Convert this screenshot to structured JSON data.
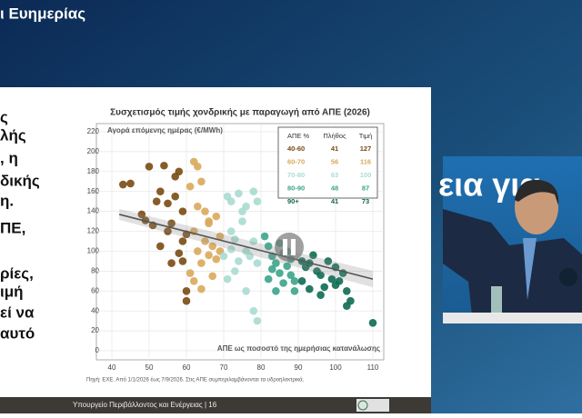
{
  "header": {
    "title": "ι Ευημερίας"
  },
  "slide_text": [
    "ς",
    "λής",
    ", η",
    "δικής",
    "η.",
    "ΠΕ,",
    "ρίες,",
    "ιμή",
    "εί να",
    "αυτό"
  ],
  "chart_data": {
    "type": "scatter",
    "title": "Συσχετισμός τιμής χονδρικής με παραγωγή από ΑΠΕ (2026)",
    "ylabel": "Αγορά επόμενης ημέρας (€/MWh)",
    "xlabel": "ΑΠΕ ως ποσοστό της ημερήσιας κατανάλωσης",
    "xlim": [
      40,
      110
    ],
    "xticks": [
      40,
      50,
      60,
      70,
      80,
      90,
      100,
      110
    ],
    "ylim": [
      0,
      220
    ],
    "yticks": [
      0,
      20,
      40,
      60,
      80,
      100,
      120,
      140,
      160,
      180,
      200,
      220
    ],
    "grid": true,
    "legend_headers": [
      "ΑΠΕ %",
      "Πλήθος",
      "Τιμή"
    ],
    "series": [
      {
        "name": "40-60",
        "color": "#7a4a12",
        "count": 41,
        "price": 127,
        "x": [
          43,
          45,
          50,
          48,
          49,
          52,
          53,
          54,
          55,
          55,
          56,
          57,
          58,
          59,
          59,
          56,
          60,
          60,
          58,
          51,
          53,
          57,
          59,
          60
        ],
        "values": [
          167,
          168,
          185,
          137,
          131,
          150,
          160,
          186,
          148,
          120,
          128,
          175,
          180,
          110,
          90,
          88,
          60,
          50,
          98,
          126,
          105,
          155,
          140,
          117
        ]
      },
      {
        "name": "60-70",
        "color": "#d9a85a",
        "count": 56,
        "price": 116,
        "x": [
          62,
          63,
          61,
          64,
          65,
          66,
          62,
          63,
          64,
          65,
          66,
          67,
          68,
          69,
          61,
          62,
          64,
          66,
          68,
          69,
          67,
          63
        ],
        "values": [
          190,
          185,
          165,
          170,
          140,
          130,
          120,
          100,
          88,
          110,
          96,
          105,
          92,
          115,
          78,
          70,
          62,
          128,
          135,
          100,
          75,
          145
        ]
      },
      {
        "name": "70-80",
        "color": "#a8dcd0",
        "count": 63,
        "price": 100,
        "x": [
          71,
          72,
          74,
          76,
          78,
          79,
          72,
          73,
          75,
          76,
          77,
          78,
          79,
          71,
          73,
          74,
          76,
          79,
          78,
          72,
          75,
          70
        ],
        "values": [
          155,
          150,
          158,
          145,
          160,
          150,
          120,
          112,
          130,
          100,
          95,
          110,
          88,
          72,
          80,
          90,
          60,
          30,
          40,
          102,
          140,
          95
        ]
      },
      {
        "name": "80-90",
        "color": "#3aa48a",
        "count": 48,
        "price": 87,
        "x": [
          81,
          82,
          83,
          84,
          85,
          86,
          87,
          88,
          89,
          82,
          84,
          86,
          88,
          85,
          83,
          89,
          87
        ],
        "values": [
          115,
          105,
          95,
          88,
          78,
          98,
          85,
          76,
          70,
          72,
          60,
          68,
          92,
          108,
          82,
          60,
          100
        ]
      },
      {
        "name": "90+",
        "color": "#0d6b52",
        "count": 41,
        "price": 73,
        "x": [
          91,
          92,
          93,
          94,
          95,
          96,
          98,
          99,
          100,
          101,
          102,
          103,
          104,
          91,
          93,
          96,
          100,
          110,
          103,
          97
        ],
        "values": [
          90,
          84,
          88,
          96,
          80,
          76,
          90,
          72,
          84,
          70,
          78,
          60,
          50,
          70,
          62,
          56,
          66,
          28,
          45,
          64
        ]
      }
    ],
    "trendline": {
      "color": "#555555",
      "x": [
        42,
        110
      ],
      "values": [
        137,
        72
      ]
    },
    "source": "Πηγή: ΕΧΕ. Από 1/1/2026 έως 7/9/2026. Στις ΑΠΕ συμπεριλαμβάνονται τα υδροηλεκτρικά."
  },
  "footer": {
    "text": "Υπουργείο Περιβάλλοντος και Ενέργειας | 16"
  },
  "video": {
    "caption": "εια για"
  }
}
